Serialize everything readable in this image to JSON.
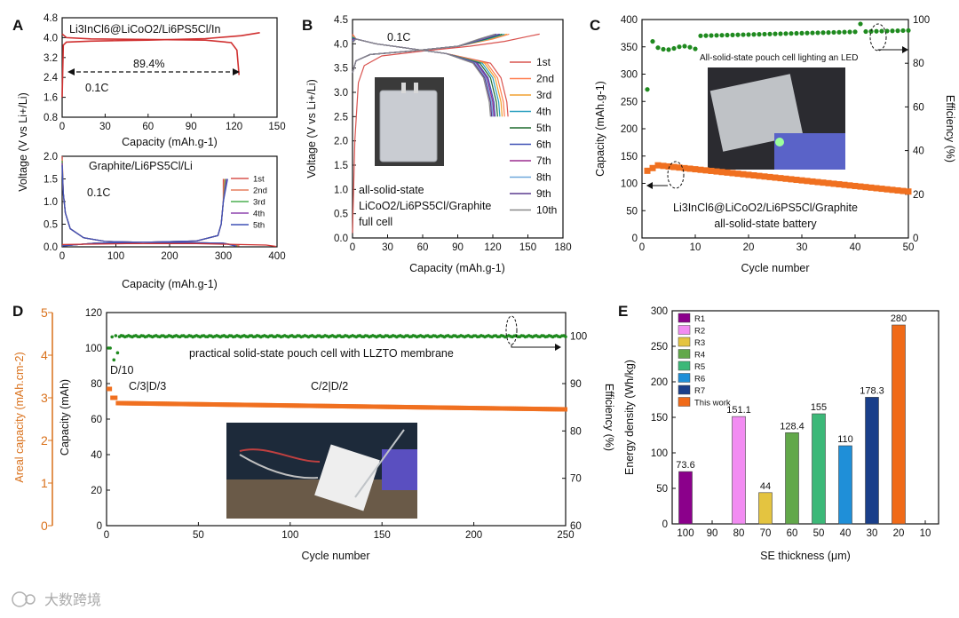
{
  "panel_letters": [
    "A",
    "B",
    "C",
    "D",
    "E"
  ],
  "watermark": "大数跨境",
  "chart_data": [
    {
      "id": "A1",
      "type": "line",
      "title": "Li3InCl6@LiCoO2/Li6PS5Cl/In",
      "xlabel": "Capacity (mAh.g-1)",
      "ylabel": "Voltage (V vs Li+/Li)",
      "xlim": [
        0,
        150
      ],
      "ylim": [
        0.8,
        4.8
      ],
      "xticks": [
        "0",
        "30",
        "60",
        "90",
        "120",
        "150"
      ],
      "yticks": [
        "0.8",
        "1.6",
        "2.4",
        "3.2",
        "4.0",
        "4.8"
      ],
      "annotation": "89.4%",
      "rate": "0.1C",
      "series": [
        {
          "name": "charge",
          "points": [
            [
              0,
              1.6
            ],
            [
              0.8,
              3.7
            ],
            [
              3,
              3.82
            ],
            [
              20,
              3.86
            ],
            [
              60,
              3.9
            ],
            [
              100,
              3.96
            ],
            [
              125,
              4.08
            ],
            [
              138,
              4.2
            ]
          ]
        },
        {
          "name": "discharge",
          "points": [
            [
              0,
              4.15
            ],
            [
              3,
              4.0
            ],
            [
              20,
              3.95
            ],
            [
              60,
              3.93
            ],
            [
              100,
              3.9
            ],
            [
              118,
              3.8
            ],
            [
              122,
              3.5
            ],
            [
              123.5,
              2.5
            ]
          ]
        }
      ]
    },
    {
      "id": "A2",
      "type": "line",
      "title": "Graphite/Li6PS5Cl/Li",
      "xlabel": "Capacity (mAh.g-1)",
      "ylabel": "",
      "xlim": [
        0,
        400
      ],
      "ylim": [
        0.0,
        2.0
      ],
      "xticks": [
        "0",
        "100",
        "200",
        "300",
        "400"
      ],
      "yticks": [
        "0.0",
        "0.5",
        "1.0",
        "1.5",
        "2.0"
      ],
      "rate": "0.1C",
      "legend": [
        "1st",
        "2nd",
        "3rd",
        "4th",
        "5th"
      ],
      "colors": [
        "#d9534f",
        "#e67e5f",
        "#4caf50",
        "#8e44ad",
        "#3f51b5"
      ]
    },
    {
      "id": "B",
      "type": "line",
      "xlabel": "Capacity (mAh.g-1)",
      "ylabel": "Voltage (V vs Li+/Li)",
      "xlim": [
        0,
        180
      ],
      "ylim": [
        0.0,
        4.5
      ],
      "xticks": [
        "0",
        "30",
        "60",
        "90",
        "120",
        "150",
        "180"
      ],
      "yticks": [
        "0.0",
        "0.5",
        "1.0",
        "1.5",
        "2.0",
        "2.5",
        "3.0",
        "3.5",
        "4.0",
        "4.5"
      ],
      "rate": "0.1C",
      "cell_text": [
        "all-solid-state",
        "LiCoO2/Li6PS5Cl/Graphite",
        "full cell"
      ],
      "legend": [
        "1st",
        "2nd",
        "3rd",
        "4th",
        "5th",
        "6th",
        "7th",
        "8th",
        "9th",
        "10th"
      ],
      "colors": [
        "#d9534f",
        "#ff7f50",
        "#f0a030",
        "#2aa0c0",
        "#1f6b2f",
        "#3f51b5",
        "#9b2d8f",
        "#6fa8dc",
        "#5b3c8f",
        "#888888"
      ],
      "first_cycle_charge_capacity": 160,
      "discharge_capacities": [
        133,
        130,
        128,
        126,
        124,
        122,
        121,
        120,
        119,
        118
      ]
    },
    {
      "id": "C",
      "type": "scatter",
      "xlabel": "Cycle number",
      "ylabel": "Capacity (mAh.g-1)",
      "y2label": "Efficiency (%)",
      "xlim": [
        0,
        50
      ],
      "ylim": [
        0,
        400
      ],
      "y2lim": [
        0,
        100
      ],
      "xticks": [
        "0",
        "10",
        "20",
        "30",
        "40",
        "50"
      ],
      "yticks": [
        "0",
        "50",
        "100",
        "150",
        "200",
        "250",
        "300",
        "350",
        "400"
      ],
      "y2ticks": [
        "0",
        "20",
        "40",
        "60",
        "80",
        "100"
      ],
      "title": [
        "Li3InCl6@LiCoO2/Li6PS5Cl/Graphite",
        "all-solid-state battery"
      ],
      "photo_caption": "All-solid-state pouch cell lighting an LED",
      "capacity": {
        "start": 123,
        "peak": 133,
        "end": 85,
        "color": "#f07020"
      },
      "efficiency": {
        "first": 68,
        "second": 90,
        "plateau": 95,
        "color": "#1f8a1f"
      }
    },
    {
      "id": "D",
      "type": "scatter",
      "xlabel": "Cycle number",
      "ylabel": "Capacity (mAh)",
      "y2label": "Efficiency (%)",
      "y3label": "Areal capacity (mAh.cm-2)",
      "xlim": [
        0,
        250
      ],
      "ylim": [
        0,
        120
      ],
      "y2lim": [
        60,
        105
      ],
      "y3lim": [
        0,
        5
      ],
      "xticks": [
        "0",
        "50",
        "100",
        "150",
        "200",
        "250"
      ],
      "yticks": [
        "0",
        "20",
        "40",
        "60",
        "80",
        "100",
        "120"
      ],
      "y2ticks": [
        "60",
        "70",
        "80",
        "90",
        "100"
      ],
      "y3ticks": [
        "0",
        "1",
        "2",
        "3",
        "4",
        "5"
      ],
      "title": "practical solid-state pouch cell with LLZTO membrane",
      "rate_labels": [
        "D/10",
        "C/3|D/3",
        "C/2|D/2"
      ],
      "capacity": {
        "initial": 77,
        "c3": 72,
        "start": 69,
        "end": 65.5,
        "color": "#f07020"
      },
      "efficiency": {
        "first": 97.5,
        "plateau": 100,
        "color": "#1f8a1f"
      }
    },
    {
      "id": "E",
      "type": "bar",
      "xlabel": "SE thickness (μm)",
      "ylabel": "Energy density (Wh/kg)",
      "xlim": [
        105,
        5
      ],
      "ylim": [
        0,
        300
      ],
      "xticks": [
        "100",
        "90",
        "80",
        "70",
        "60",
        "50",
        "40",
        "30",
        "20",
        "10"
      ],
      "yticks": [
        "0",
        "50",
        "100",
        "150",
        "200",
        "250",
        "300"
      ],
      "bars": [
        {
          "name": "R1",
          "thickness": 100,
          "value": 73.6,
          "color": "#8b008b"
        },
        {
          "name": "R2",
          "thickness": 80,
          "value": 151.1,
          "color": "#f28cf2"
        },
        {
          "name": "R3",
          "thickness": 70,
          "value": 44,
          "color": "#e4c440"
        },
        {
          "name": "R4",
          "thickness": 60,
          "value": 128.4,
          "color": "#62a84a"
        },
        {
          "name": "R5",
          "thickness": 50,
          "value": 155,
          "color": "#3cb878"
        },
        {
          "name": "R6",
          "thickness": 40,
          "value": 110,
          "color": "#1f8fd8"
        },
        {
          "name": "R7",
          "thickness": 30,
          "value": 178.3,
          "color": "#1a3f8a"
        },
        {
          "name": "This work",
          "thickness": 20,
          "value": 280,
          "color": "#f06a18"
        }
      ],
      "value_labels": [
        "73.6",
        "151.1",
        "44",
        "128.4",
        "155",
        "110",
        "178.3",
        "280"
      ]
    }
  ]
}
